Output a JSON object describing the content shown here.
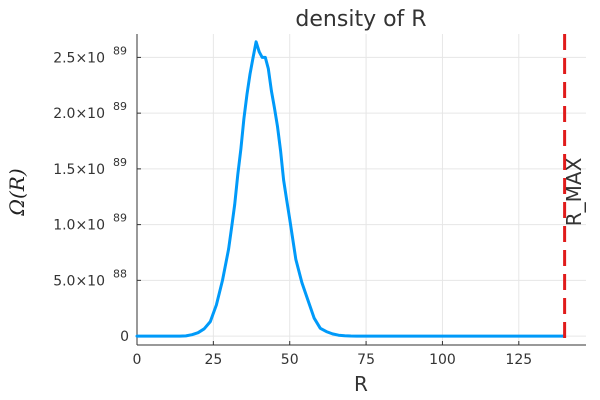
{
  "chart_data": {
    "type": "line",
    "title": "density of R",
    "xlabel": "R",
    "ylabel": "Ω(R)",
    "xlim": [
      0,
      147
    ],
    "ylim": [
      -8e+87,
      2.71e+89
    ],
    "xticks": [
      0,
      25,
      50,
      75,
      100,
      125
    ],
    "yticks": [
      {
        "value": 0,
        "mantissa": "0",
        "exponent": ""
      },
      {
        "value": 5e+88,
        "mantissa": "5.0×10",
        "exponent": "88"
      },
      {
        "value": 1e+89,
        "mantissa": "1.0×10",
        "exponent": "89"
      },
      {
        "value": 1.5e+89,
        "mantissa": "1.5×10",
        "exponent": "89"
      },
      {
        "value": 2e+89,
        "mantissa": "2.0×10",
        "exponent": "89"
      },
      {
        "value": 2.5e+89,
        "mantissa": "2.5×10",
        "exponent": "89"
      }
    ],
    "grid": true,
    "legend": "none",
    "series": [
      {
        "color": "#009af9",
        "x": [
          0,
          2,
          4,
          6,
          8,
          10,
          12,
          14,
          16,
          18,
          20,
          22,
          24,
          26,
          28,
          30,
          31,
          32,
          33,
          34,
          35,
          36,
          37,
          38,
          39,
          40,
          41,
          42,
          43,
          44,
          45,
          46,
          47,
          48,
          49,
          50,
          52,
          54,
          56,
          58,
          60,
          62,
          64,
          66,
          68,
          70,
          72,
          75,
          80,
          90,
          100,
          110,
          120,
          130,
          140
        ],
        "y": [
          0,
          0,
          0,
          0,
          0,
          0,
          0,
          2e+85,
          2e+86,
          1.2e+87,
          3e+87,
          6.5e+87,
          1.3e+88,
          2.8e+88,
          5e+88,
          7.8e+88,
          9.8e+88,
          1.18e+89,
          1.45e+89,
          1.68e+89,
          1.95e+89,
          2.17e+89,
          2.35e+89,
          2.5e+89,
          2.64e+89,
          2.55e+89,
          2.5e+89,
          2.5e+89,
          2.4e+89,
          2.2e+89,
          2.05e+89,
          1.88e+89,
          1.66e+89,
          1.4e+89,
          1.22e+89,
          1.05e+89,
          6.9e+88,
          4.8e+88,
          3.2e+88,
          1.6e+88,
          7e+87,
          4e+87,
          2e+87,
          8e+86,
          3e+86,
          1e+86,
          0,
          0,
          0,
          0,
          0,
          0,
          0,
          0,
          0
        ]
      }
    ],
    "vline": {
      "x": 140,
      "label": "R_MAX",
      "color": "#e01b1b"
    }
  }
}
